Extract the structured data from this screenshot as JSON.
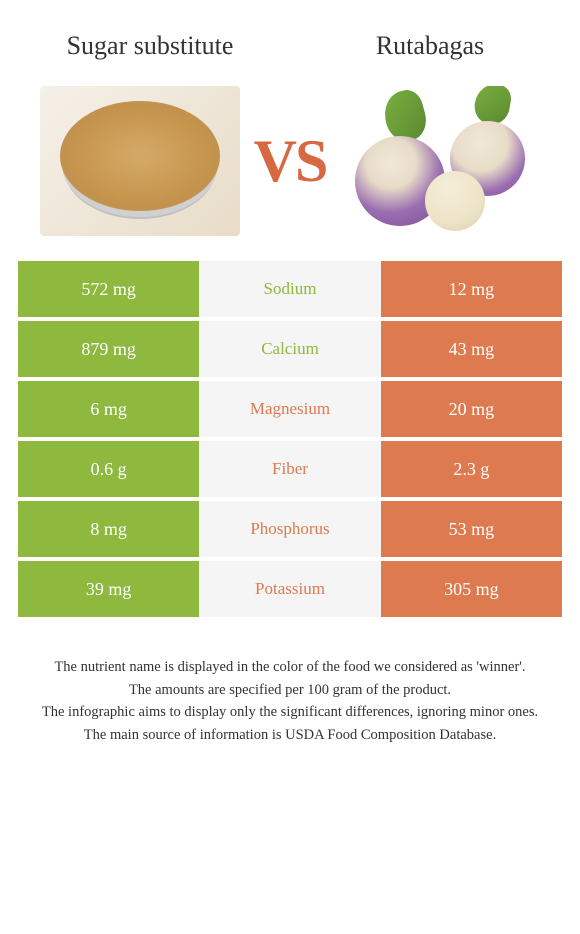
{
  "header": {
    "left_title": "Sugar substitute",
    "right_title": "Rutabagas",
    "vs": "VS"
  },
  "colors": {
    "green": "#8fb83f",
    "orange": "#dd7a4f",
    "mid_bg": "#f5f5f5",
    "vs_color": "#d66842"
  },
  "table": {
    "rows": [
      {
        "left": "572 mg",
        "label": "Sodium",
        "right": "12 mg",
        "winner": "left"
      },
      {
        "left": "879 mg",
        "label": "Calcium",
        "right": "43 mg",
        "winner": "left"
      },
      {
        "left": "6 mg",
        "label": "Magnesium",
        "right": "20 mg",
        "winner": "right"
      },
      {
        "left": "0.6 g",
        "label": "Fiber",
        "right": "2.3 g",
        "winner": "right"
      },
      {
        "left": "8 mg",
        "label": "Phosphorus",
        "right": "53 mg",
        "winner": "right"
      },
      {
        "left": "39 mg",
        "label": "Potassium",
        "right": "305 mg",
        "winner": "right"
      }
    ]
  },
  "footer": {
    "line1": "The nutrient name is displayed in the color of the food we considered as 'winner'.",
    "line2": "The amounts are specified per 100 gram of the product.",
    "line3": "The infographic aims to display only the significant differences, ignoring minor ones.",
    "line4": "The main source of information is USDA Food Composition Database."
  }
}
